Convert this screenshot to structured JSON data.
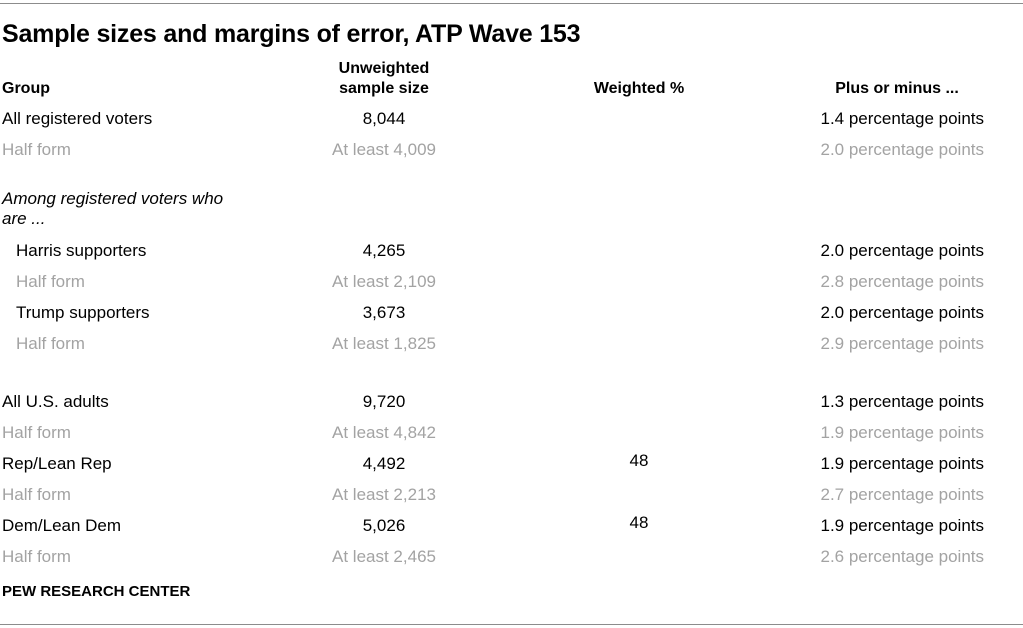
{
  "title": "Sample sizes and margins of error, ATP Wave 153",
  "headers": {
    "group": "Group",
    "unweighted_line1": "Unweighted",
    "unweighted_line2": "sample size",
    "weighted": "Weighted %",
    "margin": "Plus or minus ..."
  },
  "rows": [
    {
      "group": "All registered voters",
      "n": "8,044",
      "weighted": "",
      "moe": "1.4 percentage points"
    },
    {
      "group": "Half form",
      "n": "At least 4,009",
      "weighted": "",
      "moe": "2.0 percentage points"
    },
    {
      "group": "Harris supporters",
      "n": "4,265",
      "weighted": "",
      "moe": "2.0 percentage points"
    },
    {
      "group": "Half form",
      "n": "At least 2,109",
      "weighted": "",
      "moe": "2.8 percentage points"
    },
    {
      "group": "Trump supporters",
      "n": "3,673",
      "weighted": "",
      "moe": "2.0 percentage points"
    },
    {
      "group": "Half form",
      "n": "At least 1,825",
      "weighted": "",
      "moe": "2.9 percentage points"
    },
    {
      "group": "All U.S. adults",
      "n": "9,720",
      "weighted": "",
      "moe": "1.3 percentage points"
    },
    {
      "group": "Half form",
      "n": "At least 4,842",
      "weighted": "",
      "moe": "1.9 percentage points"
    },
    {
      "group": "Rep/Lean Rep",
      "n": "4,492",
      "weighted": "48",
      "moe": "1.9 percentage points"
    },
    {
      "group": "Half form",
      "n": "At least 2,213",
      "weighted": "",
      "moe": "2.7 percentage points"
    },
    {
      "group": "Dem/Lean Dem",
      "n": "5,026",
      "weighted": "48",
      "moe": "1.9 percentage points"
    },
    {
      "group": "Half form",
      "n": "At least 2,465",
      "weighted": "",
      "moe": "2.6 percentage points"
    }
  ],
  "subgroup_label_line1": "Among registered voters who",
  "subgroup_label_line2": "are ...",
  "source": "PEW RESEARCH CENTER",
  "colors": {
    "muted": "#a3a3a3",
    "rule": "#8c8c8c"
  }
}
